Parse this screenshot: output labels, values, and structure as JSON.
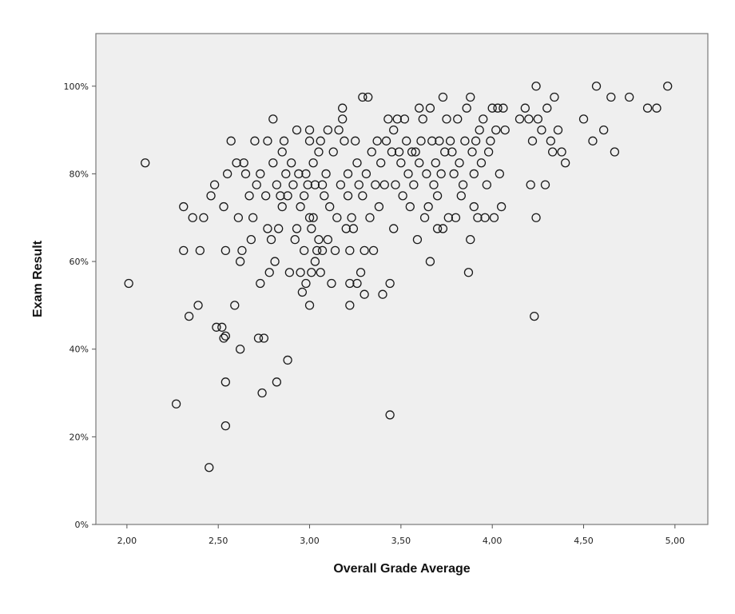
{
  "chart_data": {
    "type": "scatter",
    "title": "",
    "xlabel": "Overall Grade Average",
    "ylabel": "Exam Result",
    "xlim": [
      1.83,
      5.18
    ],
    "ylim": [
      0,
      112
    ],
    "x_ticks": [
      2.0,
      2.5,
      3.0,
      3.5,
      4.0,
      4.5,
      5.0
    ],
    "x_tick_labels": [
      "2,00",
      "2,50",
      "3,00",
      "3,50",
      "4,00",
      "4,50",
      "5,00"
    ],
    "y_ticks": [
      0,
      20,
      40,
      60,
      80,
      100
    ],
    "y_tick_labels": [
      "0%",
      "20%",
      "40%",
      "60%",
      "80%",
      "100%"
    ],
    "grid": false,
    "legend": "none",
    "background_color": "#efefef",
    "marker": "open-circle",
    "points": [
      [
        2.01,
        55
      ],
      [
        2.1,
        82.5
      ],
      [
        2.27,
        27.5
      ],
      [
        2.31,
        72.5
      ],
      [
        2.31,
        62.5
      ],
      [
        2.34,
        47.5
      ],
      [
        2.36,
        70
      ],
      [
        2.39,
        50
      ],
      [
        2.4,
        62.5
      ],
      [
        2.42,
        70
      ],
      [
        2.45,
        13
      ],
      [
        2.46,
        75
      ],
      [
        2.48,
        77.5
      ],
      [
        2.49,
        45
      ],
      [
        2.52,
        45
      ],
      [
        2.53,
        72.5
      ],
      [
        2.53,
        42.5
      ],
      [
        2.54,
        43
      ],
      [
        2.54,
        62.5
      ],
      [
        2.54,
        32.5
      ],
      [
        2.54,
        22.5
      ],
      [
        2.55,
        80
      ],
      [
        2.57,
        87.5
      ],
      [
        2.59,
        50
      ],
      [
        2.6,
        82.5
      ],
      [
        2.61,
        70
      ],
      [
        2.62,
        60
      ],
      [
        2.62,
        40
      ],
      [
        2.63,
        62.5
      ],
      [
        2.64,
        82.5
      ],
      [
        2.65,
        80
      ],
      [
        2.67,
        75
      ],
      [
        2.68,
        65
      ],
      [
        2.69,
        70
      ],
      [
        2.7,
        87.5
      ],
      [
        2.71,
        77.5
      ],
      [
        2.72,
        42.5
      ],
      [
        2.73,
        55
      ],
      [
        2.73,
        80
      ],
      [
        2.74,
        30
      ],
      [
        2.75,
        42.5
      ],
      [
        2.76,
        75
      ],
      [
        2.77,
        87.5
      ],
      [
        2.77,
        67.5
      ],
      [
        2.78,
        57.5
      ],
      [
        2.79,
        65
      ],
      [
        2.8,
        92.5
      ],
      [
        2.8,
        82.5
      ],
      [
        2.81,
        60
      ],
      [
        2.82,
        32.5
      ],
      [
        2.82,
        77.5
      ],
      [
        2.83,
        67.5
      ],
      [
        2.84,
        75
      ],
      [
        2.85,
        85
      ],
      [
        2.85,
        72.5
      ],
      [
        2.86,
        87.5
      ],
      [
        2.87,
        80
      ],
      [
        2.88,
        37.5
      ],
      [
        2.88,
        75
      ],
      [
        2.89,
        57.5
      ],
      [
        2.9,
        82.5
      ],
      [
        2.91,
        77.5
      ],
      [
        2.92,
        65
      ],
      [
        2.93,
        67.5
      ],
      [
        2.93,
        90
      ],
      [
        2.94,
        80
      ],
      [
        2.95,
        57.5
      ],
      [
        2.95,
        72.5
      ],
      [
        2.96,
        53
      ],
      [
        2.97,
        62.5
      ],
      [
        2.97,
        75
      ],
      [
        2.98,
        80
      ],
      [
        2.98,
        55
      ],
      [
        2.99,
        77.5
      ],
      [
        3.0,
        87.5
      ],
      [
        3.0,
        90
      ],
      [
        3.0,
        50
      ],
      [
        3.0,
        70
      ],
      [
        3.01,
        57.5
      ],
      [
        3.01,
        67.5
      ],
      [
        3.02,
        82.5
      ],
      [
        3.02,
        70
      ],
      [
        3.03,
        77.5
      ],
      [
        3.03,
        60
      ],
      [
        3.04,
        62.5
      ],
      [
        3.05,
        65
      ],
      [
        3.05,
        85
      ],
      [
        3.06,
        87.5
      ],
      [
        3.06,
        57.5
      ],
      [
        3.07,
        77.5
      ],
      [
        3.07,
        62.5
      ],
      [
        3.08,
        75
      ],
      [
        3.09,
        80
      ],
      [
        3.1,
        65
      ],
      [
        3.1,
        90
      ],
      [
        3.11,
        72.5
      ],
      [
        3.12,
        55
      ],
      [
        3.13,
        85
      ],
      [
        3.14,
        62.5
      ],
      [
        3.15,
        70
      ],
      [
        3.16,
        90
      ],
      [
        3.17,
        77.5
      ],
      [
        3.18,
        92.5
      ],
      [
        3.18,
        95
      ],
      [
        3.19,
        87.5
      ],
      [
        3.2,
        67.5
      ],
      [
        3.21,
        80
      ],
      [
        3.21,
        75
      ],
      [
        3.22,
        50
      ],
      [
        3.22,
        55
      ],
      [
        3.22,
        62.5
      ],
      [
        3.23,
        70
      ],
      [
        3.24,
        67.5
      ],
      [
        3.25,
        87.5
      ],
      [
        3.26,
        82.5
      ],
      [
        3.26,
        55
      ],
      [
        3.27,
        77.5
      ],
      [
        3.28,
        57.5
      ],
      [
        3.29,
        75
      ],
      [
        3.29,
        97.5
      ],
      [
        3.3,
        52.5
      ],
      [
        3.3,
        62.5
      ],
      [
        3.31,
        80
      ],
      [
        3.32,
        97.5
      ],
      [
        3.33,
        70
      ],
      [
        3.34,
        85
      ],
      [
        3.35,
        62.5
      ],
      [
        3.36,
        77.5
      ],
      [
        3.37,
        87.5
      ],
      [
        3.38,
        72.5
      ],
      [
        3.39,
        82.5
      ],
      [
        3.4,
        52.5
      ],
      [
        3.41,
        77.5
      ],
      [
        3.42,
        87.5
      ],
      [
        3.43,
        92.5
      ],
      [
        3.44,
        55
      ],
      [
        3.44,
        25
      ],
      [
        3.45,
        85
      ],
      [
        3.46,
        67.5
      ],
      [
        3.46,
        90
      ],
      [
        3.47,
        77.5
      ],
      [
        3.48,
        92.5
      ],
      [
        3.49,
        85
      ],
      [
        3.5,
        82.5
      ],
      [
        3.51,
        75
      ],
      [
        3.52,
        92.5
      ],
      [
        3.53,
        87.5
      ],
      [
        3.54,
        80
      ],
      [
        3.55,
        72.5
      ],
      [
        3.56,
        85
      ],
      [
        3.57,
        77.5
      ],
      [
        3.58,
        85
      ],
      [
        3.59,
        65
      ],
      [
        3.6,
        82.5
      ],
      [
        3.6,
        95
      ],
      [
        3.61,
        87.5
      ],
      [
        3.62,
        92.5
      ],
      [
        3.63,
        70
      ],
      [
        3.64,
        80
      ],
      [
        3.65,
        72.5
      ],
      [
        3.66,
        60
      ],
      [
        3.66,
        95
      ],
      [
        3.67,
        87.5
      ],
      [
        3.68,
        77.5
      ],
      [
        3.69,
        82.5
      ],
      [
        3.7,
        75
      ],
      [
        3.7,
        67.5
      ],
      [
        3.71,
        87.5
      ],
      [
        3.72,
        80
      ],
      [
        3.73,
        67.5
      ],
      [
        3.73,
        97.5
      ],
      [
        3.74,
        85
      ],
      [
        3.75,
        92.5
      ],
      [
        3.76,
        70
      ],
      [
        3.77,
        87.5
      ],
      [
        3.78,
        85
      ],
      [
        3.79,
        80
      ],
      [
        3.8,
        70
      ],
      [
        3.81,
        92.5
      ],
      [
        3.82,
        82.5
      ],
      [
        3.83,
        75
      ],
      [
        3.84,
        77.5
      ],
      [
        3.85,
        87.5
      ],
      [
        3.86,
        95
      ],
      [
        3.87,
        57.5
      ],
      [
        3.88,
        65
      ],
      [
        3.88,
        97.5
      ],
      [
        3.89,
        85
      ],
      [
        3.9,
        72.5
      ],
      [
        3.9,
        80
      ],
      [
        3.91,
        87.5
      ],
      [
        3.92,
        70
      ],
      [
        3.93,
        90
      ],
      [
        3.94,
        82.5
      ],
      [
        3.95,
        92.5
      ],
      [
        3.96,
        70
      ],
      [
        3.97,
        77.5
      ],
      [
        3.98,
        85
      ],
      [
        3.99,
        87.5
      ],
      [
        4.0,
        95
      ],
      [
        4.01,
        70
      ],
      [
        4.02,
        90
      ],
      [
        4.03,
        95
      ],
      [
        4.04,
        80
      ],
      [
        4.05,
        72.5
      ],
      [
        4.06,
        95
      ],
      [
        4.07,
        90
      ],
      [
        4.15,
        92.5
      ],
      [
        4.18,
        95
      ],
      [
        4.2,
        92.5
      ],
      [
        4.21,
        77.5
      ],
      [
        4.22,
        87.5
      ],
      [
        4.23,
        47.5
      ],
      [
        4.24,
        100
      ],
      [
        4.24,
        70
      ],
      [
        4.25,
        92.5
      ],
      [
        4.27,
        90
      ],
      [
        4.29,
        77.5
      ],
      [
        4.3,
        95
      ],
      [
        4.32,
        87.5
      ],
      [
        4.33,
        85
      ],
      [
        4.34,
        97.5
      ],
      [
        4.36,
        90
      ],
      [
        4.38,
        85
      ],
      [
        4.4,
        82.5
      ],
      [
        4.5,
        92.5
      ],
      [
        4.55,
        87.5
      ],
      [
        4.57,
        100
      ],
      [
        4.61,
        90
      ],
      [
        4.65,
        97.5
      ],
      [
        4.67,
        85
      ],
      [
        4.75,
        97.5
      ],
      [
        4.85,
        95
      ],
      [
        4.9,
        95
      ],
      [
        4.96,
        100
      ]
    ]
  }
}
